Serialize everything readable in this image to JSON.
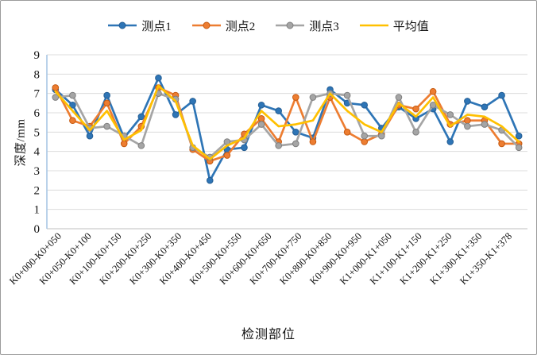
{
  "chart_data": {
    "type": "line",
    "title": "",
    "xlabel": "检测部位",
    "ylabel": "深度/mm",
    "ylim": [
      0,
      9
    ],
    "y_ticks": [
      0,
      1,
      2,
      3,
      4,
      5,
      6,
      7,
      8,
      9
    ],
    "grid": true,
    "legend_position": "top-center",
    "categories": [
      "K0+000-K0+050",
      "K0+050-K0+100",
      "K0+100-K0+150",
      "K0+200-K0+250",
      "K0+300-K0+350",
      "K0+400-K0+450",
      "K0+500-K0+550",
      "K0+600-K0+650",
      "K0+700-K0+750",
      "K0+800-K0+850",
      "K0+900-K0+950",
      "K1+000-K1+050",
      "K1+100-K1+150",
      "K1+200-K1+250",
      "K1+300-K1+350",
      "K1+350-K1+378"
    ],
    "n_points": 28,
    "series": [
      {
        "name": "测点1",
        "color": "#2e75b6",
        "edge": "#255e94",
        "marker": "circle",
        "values": [
          7.2,
          6.4,
          4.8,
          6.9,
          4.7,
          5.8,
          7.8,
          5.9,
          6.6,
          2.5,
          4.1,
          4.2,
          6.4,
          6.1,
          5.0,
          4.7,
          7.2,
          6.5,
          6.4,
          5.2,
          6.3,
          5.7,
          6.2,
          4.5,
          6.6,
          6.3,
          6.9,
          4.8
        ]
      },
      {
        "name": "测点2",
        "color": "#ed7d31",
        "edge": "#c55a11",
        "marker": "circle",
        "values": [
          7.3,
          5.6,
          5.3,
          6.5,
          4.4,
          5.3,
          7.3,
          6.9,
          4.1,
          3.5,
          3.8,
          4.9,
          5.7,
          4.5,
          6.8,
          4.5,
          6.8,
          5.0,
          4.5,
          4.9,
          6.4,
          6.2,
          7.1,
          5.4,
          5.6,
          5.6,
          4.4,
          4.4
        ]
      },
      {
        "name": "测点3",
        "color": "#a5a5a5",
        "edge": "#7f7f7f",
        "marker": "circle",
        "values": [
          6.8,
          6.9,
          5.2,
          5.3,
          4.8,
          4.3,
          7.0,
          6.7,
          4.2,
          3.7,
          4.5,
          4.6,
          5.4,
          4.3,
          4.4,
          6.8,
          7.0,
          6.9,
          4.8,
          4.8,
          6.8,
          5.0,
          6.4,
          5.9,
          5.3,
          5.4,
          5.1,
          4.2
        ]
      },
      {
        "name": "平均值",
        "color": "#ffc000",
        "edge": "#bf8f00",
        "marker": "none",
        "values": [
          7.1,
          6.1,
          5.1,
          6.1,
          4.6,
          5.1,
          7.4,
          6.6,
          4.3,
          3.6,
          4.3,
          4.7,
          6.1,
          5.3,
          5.4,
          5.6,
          7.0,
          6.1,
          5.4,
          5.0,
          6.5,
          5.8,
          6.8,
          5.3,
          5.9,
          5.8,
          5.3,
          4.5
        ]
      }
    ],
    "colors": {
      "axis_line": "#a8c6e4",
      "baseline": "#bfbfbf",
      "gridline": "#dcdcdc",
      "text": "#111111"
    }
  }
}
